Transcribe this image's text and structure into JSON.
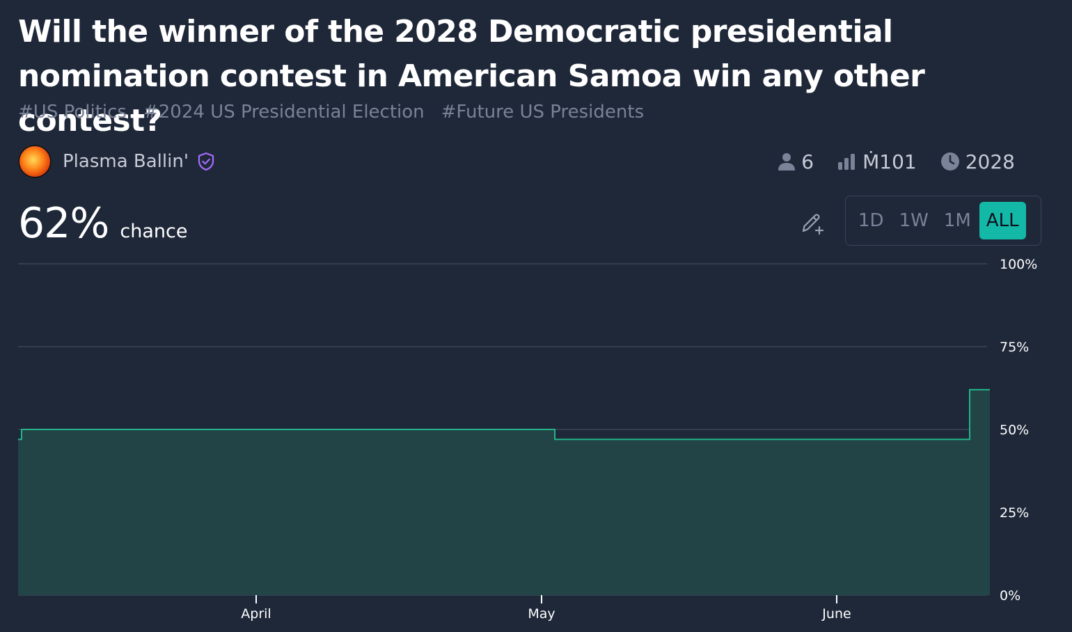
{
  "question": {
    "title": "Will the winner of the 2028 Democratic presidential nomination contest in American Samoa win any other contest?",
    "tags": [
      "#US Politics",
      "#2024 US Presidential Election",
      "#Future US Presidents"
    ]
  },
  "creator": {
    "name": "Plasma Ballin'"
  },
  "stats": {
    "traders": "6",
    "volume": "Ṁ101",
    "close": "2028"
  },
  "probability": {
    "value": "62%",
    "label": "chance"
  },
  "time_ranges": [
    "1D",
    "1W",
    "1M",
    "ALL"
  ],
  "active_range": "ALL",
  "colors": {
    "accent": "#14b8a6",
    "line": "#22b488",
    "fill": "#234447",
    "background": "#1f2839"
  },
  "icons": [
    "user-icon",
    "bar-chart-icon",
    "clock-icon",
    "verified-shield-icon",
    "edit-plus-icon"
  ],
  "chart_data": {
    "type": "area",
    "x_ticks": [
      "April",
      "May",
      "June"
    ],
    "y_ticks": [
      "100%",
      "75%",
      "50%",
      "25%",
      "0%"
    ],
    "ylim": [
      0,
      100
    ],
    "grid": true,
    "series": [
      {
        "points": [
          {
            "x": "start",
            "y": 47
          },
          {
            "x": "start+",
            "y": 50
          },
          {
            "x": "May 1",
            "y": 50
          },
          {
            "x": "May 1+",
            "y": 47
          },
          {
            "x": "mid-June",
            "y": 47
          },
          {
            "x": "mid-June+",
            "y": 62
          }
        ]
      }
    ]
  }
}
